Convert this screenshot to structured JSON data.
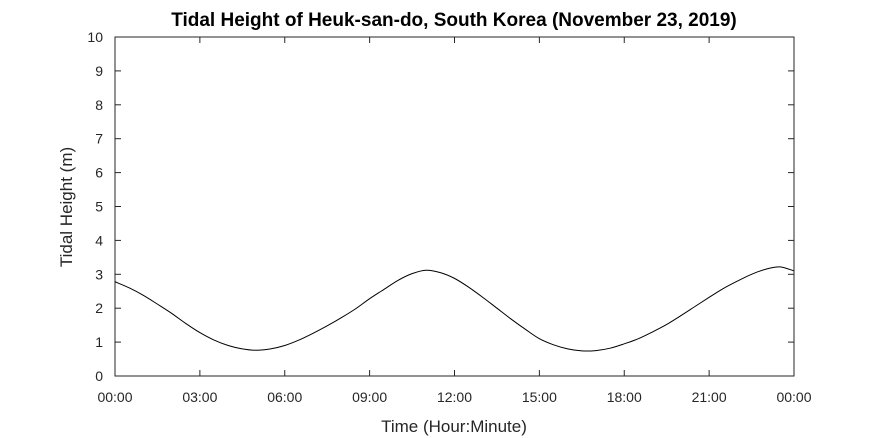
{
  "chart_data": {
    "type": "line",
    "title": "Tidal Height of Heuk-san-do, South Korea (November 23, 2019)",
    "xlabel": "Time (Hour:Minute)",
    "ylabel": "Tidal Height (m)",
    "xlim": [
      "2019-11-23 00:00",
      "2019-11-24 00:00"
    ],
    "ylim": [
      0,
      10
    ],
    "x_ticks": [
      "00:00",
      "03:00",
      "06:00",
      "09:00",
      "12:00",
      "15:00",
      "18:00",
      "21:00",
      "00:00"
    ],
    "y_ticks": [
      "0",
      "1",
      "2",
      "3",
      "4",
      "5",
      "6",
      "7",
      "8",
      "9",
      "10"
    ],
    "grid": false,
    "series": [
      {
        "color": "#000000",
        "x": [
          "00:00",
          "00:30",
          "01:00",
          "01:30",
          "02:00",
          "02:30",
          "03:00",
          "03:30",
          "04:00",
          "04:30",
          "05:00",
          "05:30",
          "06:00",
          "06:30",
          "07:00",
          "07:30",
          "08:00",
          "08:30",
          "09:00",
          "09:30",
          "10:00",
          "10:30",
          "11:00",
          "11:30",
          "12:00",
          "12:30",
          "13:00",
          "13:30",
          "14:00",
          "14:30",
          "15:00",
          "15:30",
          "16:00",
          "16:30",
          "17:00",
          "17:30",
          "18:00",
          "18:30",
          "19:00",
          "19:30",
          "20:00",
          "20:30",
          "21:00",
          "21:30",
          "22:00",
          "22:30",
          "23:00",
          "23:30",
          "24:00"
        ],
        "y": [
          2.78,
          2.6,
          2.38,
          2.12,
          1.85,
          1.55,
          1.28,
          1.06,
          0.9,
          0.8,
          0.76,
          0.8,
          0.9,
          1.06,
          1.26,
          1.48,
          1.72,
          1.98,
          2.28,
          2.55,
          2.82,
          3.02,
          3.12,
          3.05,
          2.88,
          2.62,
          2.32,
          2.0,
          1.68,
          1.38,
          1.1,
          0.92,
          0.8,
          0.74,
          0.75,
          0.82,
          0.95,
          1.1,
          1.3,
          1.52,
          1.78,
          2.05,
          2.32,
          2.58,
          2.8,
          3.0,
          3.15,
          3.22,
          3.1
        ]
      }
    ]
  }
}
